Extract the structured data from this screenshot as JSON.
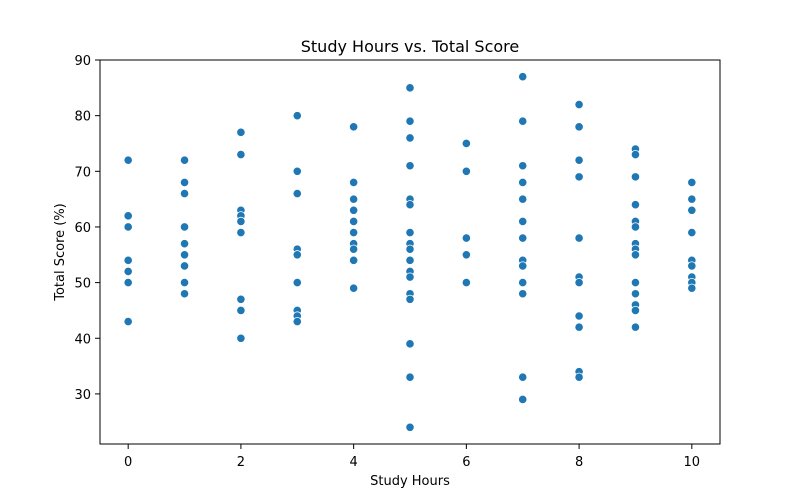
{
  "chart_data": {
    "type": "scatter",
    "title": "Study Hours vs. Total Score",
    "xlabel": "Study Hours",
    "ylabel": "Total Score (%)",
    "xlim": [
      -0.5,
      10.5
    ],
    "ylim": [
      21,
      90
    ],
    "xticks": [
      0,
      2,
      4,
      6,
      8,
      10
    ],
    "yticks": [
      30,
      40,
      50,
      60,
      70,
      80,
      90
    ],
    "grid": false,
    "legend": "none",
    "marker_color": "#1f77b4",
    "points": [
      [
        0,
        72
      ],
      [
        0,
        62
      ],
      [
        0,
        60
      ],
      [
        0,
        54
      ],
      [
        0,
        52
      ],
      [
        0,
        50
      ],
      [
        0,
        43
      ],
      [
        1,
        72
      ],
      [
        1,
        68
      ],
      [
        1,
        66
      ],
      [
        1,
        60
      ],
      [
        1,
        57
      ],
      [
        1,
        55
      ],
      [
        1,
        53
      ],
      [
        1,
        50
      ],
      [
        1,
        48
      ],
      [
        2,
        77
      ],
      [
        2,
        73
      ],
      [
        2,
        63
      ],
      [
        2,
        62
      ],
      [
        2,
        61
      ],
      [
        2,
        59
      ],
      [
        2,
        47
      ],
      [
        2,
        45
      ],
      [
        2,
        40
      ],
      [
        3,
        80
      ],
      [
        3,
        70
      ],
      [
        3,
        66
      ],
      [
        3,
        56
      ],
      [
        3,
        55
      ],
      [
        3,
        50
      ],
      [
        3,
        45
      ],
      [
        3,
        44
      ],
      [
        3,
        43
      ],
      [
        4,
        78
      ],
      [
        4,
        68
      ],
      [
        4,
        65
      ],
      [
        4,
        63
      ],
      [
        4,
        61
      ],
      [
        4,
        59
      ],
      [
        4,
        57
      ],
      [
        4,
        56
      ],
      [
        4,
        54
      ],
      [
        4,
        49
      ],
      [
        5,
        85
      ],
      [
        5,
        79
      ],
      [
        5,
        76
      ],
      [
        5,
        71
      ],
      [
        5,
        65
      ],
      [
        5,
        64
      ],
      [
        5,
        59
      ],
      [
        5,
        57
      ],
      [
        5,
        56
      ],
      [
        5,
        54
      ],
      [
        5,
        52
      ],
      [
        5,
        51
      ],
      [
        5,
        48
      ],
      [
        5,
        47
      ],
      [
        5,
        39
      ],
      [
        5,
        33
      ],
      [
        5,
        24
      ],
      [
        6,
        75
      ],
      [
        6,
        70
      ],
      [
        6,
        58
      ],
      [
        6,
        55
      ],
      [
        6,
        50
      ],
      [
        7,
        87
      ],
      [
        7,
        79
      ],
      [
        7,
        71
      ],
      [
        7,
        68
      ],
      [
        7,
        65
      ],
      [
        7,
        61
      ],
      [
        7,
        58
      ],
      [
        7,
        54
      ],
      [
        7,
        53
      ],
      [
        7,
        50
      ],
      [
        7,
        48
      ],
      [
        7,
        33
      ],
      [
        7,
        29
      ],
      [
        8,
        82
      ],
      [
        8,
        78
      ],
      [
        8,
        72
      ],
      [
        8,
        69
      ],
      [
        8,
        58
      ],
      [
        8,
        51
      ],
      [
        8,
        50
      ],
      [
        8,
        44
      ],
      [
        8,
        42
      ],
      [
        8,
        34
      ],
      [
        8,
        33
      ],
      [
        9,
        74
      ],
      [
        9,
        73
      ],
      [
        9,
        69
      ],
      [
        9,
        64
      ],
      [
        9,
        61
      ],
      [
        9,
        60
      ],
      [
        9,
        57
      ],
      [
        9,
        56
      ],
      [
        9,
        55
      ],
      [
        9,
        50
      ],
      [
        9,
        48
      ],
      [
        9,
        46
      ],
      [
        9,
        45
      ],
      [
        9,
        42
      ],
      [
        10,
        68
      ],
      [
        10,
        65
      ],
      [
        10,
        63
      ],
      [
        10,
        59
      ],
      [
        10,
        54
      ],
      [
        10,
        53
      ],
      [
        10,
        51
      ],
      [
        10,
        50
      ],
      [
        10,
        49
      ]
    ]
  }
}
